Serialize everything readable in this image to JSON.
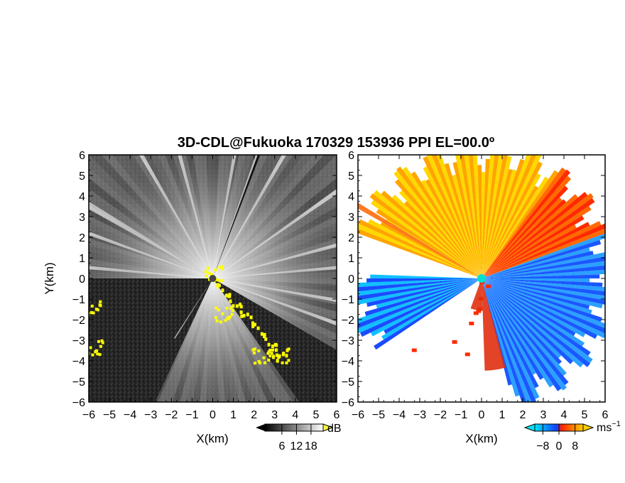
{
  "figure": {
    "title": "3D-CDL@Fukuoka 170329 153936 PPI EL=00.0º",
    "colors": {
      "background": "#ffffff",
      "axis": "#000000",
      "echo_mask": "#ffff00"
    }
  },
  "chart_data": [
    {
      "type": "heatmap",
      "name": "intensity",
      "xlabel": "X(km)",
      "ylabel": "Y(km)",
      "xlim": [
        -6,
        6
      ],
      "ylim": [
        -6,
        6
      ],
      "xticks": [
        "−6",
        "−5",
        "−4",
        "−3",
        "−2",
        "−1",
        "0",
        "1",
        "2",
        "3",
        "4",
        "5",
        "6"
      ],
      "yticks": [
        "6",
        "5",
        "4",
        "3",
        "2",
        "1",
        "0",
        "−1",
        "−2",
        "−3",
        "−4",
        "−5",
        "−6"
      ],
      "colorbar": {
        "unit": "dB",
        "ticks": [
          6,
          12,
          18
        ],
        "colors": [
          "#000000",
          "#ffffff"
        ],
        "extend": "both"
      },
      "features": {
        "beam_sector_deg": [
          {
            "az_from": 0,
            "az_to": 360,
            "intensity": 0.55
          }
        ],
        "dark_sectors_deg": [
          [
            205,
            270
          ],
          [
            120,
            145
          ]
        ],
        "bright_beams_deg": [
          55,
          75,
          85,
          100,
          110,
          250,
          260,
          275,
          290,
          300,
          330,
          345,
          10,
          20,
          30
        ],
        "yellow_clusters": [
          {
            "x": 0.0,
            "y": 0.3
          },
          {
            "x": 0.5,
            "y": -1.7
          },
          {
            "x": 2.3,
            "y": -3.7
          },
          {
            "x": 3.2,
            "y": -3.7
          },
          {
            "x": -5.8,
            "y": -3.3
          },
          {
            "x": -5.9,
            "y": -1.3
          }
        ]
      }
    },
    {
      "type": "heatmap",
      "name": "doppler",
      "xlabel": "X(km)",
      "xlim": [
        -6,
        6
      ],
      "ylim": [
        -6,
        6
      ],
      "xticks": [
        "−6",
        "−5",
        "−4",
        "−3",
        "−2",
        "−1",
        "0",
        "1",
        "2",
        "3",
        "4",
        "5",
        "6"
      ],
      "yticks": [
        "6",
        "5",
        "4",
        "3",
        "2",
        "1",
        "0",
        "−1",
        "−2",
        "−3",
        "−4",
        "−5",
        "−6"
      ],
      "colorbar": {
        "unit": "ms",
        "unit_sup": "−1",
        "ticks": [
          -8,
          0,
          8
        ],
        "colors": [
          "#00e5ff",
          "#1040ff",
          "#ff2000",
          "#ffd000"
        ],
        "extend": "both"
      },
      "features": {
        "positive_region_deg": [
          [
            290,
            360
          ],
          [
            0,
            70
          ]
        ],
        "negative_region_deg": [
          [
            70,
            160
          ],
          [
            235,
            270
          ]
        ],
        "orange_beam_deg": 300,
        "center_color": "#00e0d0"
      }
    }
  ]
}
